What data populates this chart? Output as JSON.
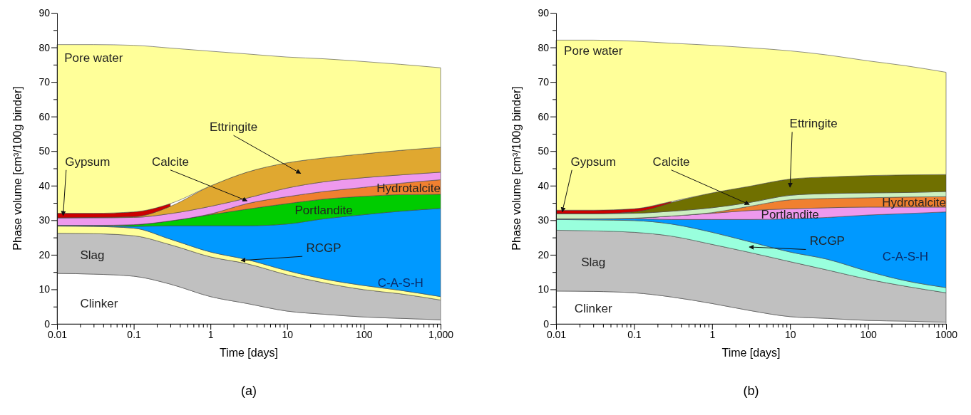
{
  "chart_data": [
    {
      "type": "area",
      "stacked": true,
      "log": "x",
      "xlabel": "Time [days]",
      "ylabel": "Phase volume [cm³/100g binder]",
      "annotations": [
        "(a)"
      ],
      "x": [
        0.01,
        0.03,
        0.1,
        0.3,
        1,
        3,
        10,
        30,
        100,
        300,
        1000
      ],
      "xlim": [
        0.01,
        1000
      ],
      "ylim": [
        0,
        90
      ],
      "xticks": [
        0.01,
        {
          "value": 0.02,
          "label": null
        },
        {
          "value": 0.03,
          "label": null
        },
        {
          "value": 0.04,
          "label": null
        },
        {
          "value": 0.05,
          "label": null
        },
        {
          "value": 0.06,
          "label": null
        },
        {
          "value": 0.07,
          "label": null
        },
        {
          "value": 0.08,
          "label": null
        },
        {
          "value": 0.09,
          "label": null
        },
        0.1,
        {
          "value": 0.2,
          "label": null
        },
        {
          "value": 0.3,
          "label": null
        },
        {
          "value": 0.4,
          "label": null
        },
        {
          "value": 0.5,
          "label": null
        },
        {
          "value": 0.6,
          "label": null
        },
        {
          "value": 0.7,
          "label": null
        },
        {
          "value": 0.8,
          "label": null
        },
        {
          "value": 0.9,
          "label": null
        },
        1,
        {
          "value": 2,
          "label": null
        },
        {
          "value": 3,
          "label": null
        },
        {
          "value": 4,
          "label": null
        },
        {
          "value": 5,
          "label": null
        },
        {
          "value": 6,
          "label": null
        },
        {
          "value": 7,
          "label": null
        },
        {
          "value": 8,
          "label": null
        },
        {
          "value": 9,
          "label": null
        },
        10,
        {
          "value": 20,
          "label": null
        },
        {
          "value": 30,
          "label": null
        },
        {
          "value": 40,
          "label": null
        },
        {
          "value": 50,
          "label": null
        },
        {
          "value": 60,
          "label": null
        },
        {
          "value": 70,
          "label": null
        },
        {
          "value": 80,
          "label": null
        },
        {
          "value": 90,
          "label": null
        },
        100,
        {
          "value": 200,
          "label": null
        },
        {
          "value": 300,
          "label": null
        },
        {
          "value": 400,
          "label": null
        },
        {
          "value": 500,
          "label": null
        },
        {
          "value": 600,
          "label": null
        },
        {
          "value": 700,
          "label": null
        },
        {
          "value": 800,
          "label": null
        },
        {
          "value": 900,
          "label": null
        },
        {
          "value": 1000,
          "label": "1,000"
        }
      ],
      "yticks": [
        0,
        {
          "value": 5,
          "label": null
        },
        10,
        {
          "value": 15,
          "label": null
        },
        20,
        {
          "value": 25,
          "label": null
        },
        30,
        {
          "value": 35,
          "label": null
        },
        40,
        {
          "value": 45,
          "label": null
        },
        50,
        {
          "value": 55,
          "label": null
        },
        60,
        {
          "value": 65,
          "label": null
        },
        70,
        {
          "value": 75,
          "label": null
        },
        80,
        {
          "value": 85,
          "label": null
        },
        90
      ],
      "series": [
        {
          "name": "Clinker",
          "color": "#ffffff",
          "values": [
            14.6,
            14.4,
            13.8,
            11.5,
            7.9,
            5.9,
            3.7,
            2.8,
            2.0,
            1.6,
            1.2
          ]
        },
        {
          "name": "Slag",
          "color": "#c0c0c0",
          "values": [
            11.6,
            11.7,
            11.7,
            11.4,
            11.5,
            11.5,
            10.5,
            9.1,
            7.9,
            7.1,
            5.7
          ]
        },
        {
          "name": "RCGP",
          "color": "#ffff99",
          "values": [
            2.1,
            2.1,
            2.2,
            1.6,
            1.4,
            1.2,
            1.2,
            1.1,
            1.2,
            1.0,
            1.0
          ]
        },
        {
          "name": "C-A-S-H",
          "color": "#0099ff",
          "values": [
            0.2,
            0.2,
            0.5,
            3.9,
            7.6,
            9.8,
            13.5,
            17.4,
            20.5,
            22.9,
            25.5
          ]
        },
        {
          "name": "Portlandite",
          "color": "#00cc00",
          "values": [
            0,
            0.1,
            0.5,
            1.4,
            3.2,
            4.8,
            5.9,
            5.7,
            5.3,
            4.8,
            4.1
          ]
        },
        {
          "name": "Hydrotalcite",
          "color": "#f08030",
          "values": [
            0,
            0,
            0,
            0,
            0.2,
            1.6,
            2.0,
            2.2,
            2.6,
            3.3,
            4.2
          ]
        },
        {
          "name": "Calcite",
          "color": "#ee99ee",
          "values": [
            2.2,
            2.2,
            2.1,
            2.1,
            2.2,
            1.6,
            2.5,
            2.8,
            2.8,
            2.4,
            2.2
          ]
        },
        {
          "name": "Ettringite",
          "color": "#e0a830",
          "values": [
            0,
            0.1,
            0.2,
            2.1,
            5.9,
            7.5,
            7.3,
            6.9,
            6.9,
            7.1,
            7.2
          ]
        },
        {
          "name": "Gypsum",
          "color": "#cc0000",
          "values": [
            1.3,
            1.2,
            1.4,
            0.8,
            null,
            null,
            null,
            null,
            null,
            null,
            null
          ]
        },
        {
          "name": "Pore water",
          "color": "#ffff99",
          "values": [
            48.8,
            48.8,
            48.2,
            45.0,
            39.0,
            34.2,
            30.6,
            28.7,
            26.7,
            24.9,
            23.0
          ]
        }
      ]
    },
    {
      "type": "area",
      "stacked": true,
      "log": "x",
      "xlabel": "Time [days]",
      "ylabel": "Phase volume [cm³/100g binder]",
      "annotations": [
        "(b)"
      ],
      "x": [
        0.01,
        0.03,
        0.1,
        0.3,
        1,
        3,
        10,
        30,
        100,
        300,
        1000
      ],
      "xlim": [
        0.01,
        1000
      ],
      "ylim": [
        0,
        90
      ],
      "xticks": [
        0.01,
        {
          "value": 0.02,
          "label": null
        },
        {
          "value": 0.03,
          "label": null
        },
        {
          "value": 0.04,
          "label": null
        },
        {
          "value": 0.05,
          "label": null
        },
        {
          "value": 0.06,
          "label": null
        },
        {
          "value": 0.07,
          "label": null
        },
        {
          "value": 0.08,
          "label": null
        },
        {
          "value": 0.09,
          "label": null
        },
        0.1,
        {
          "value": 0.2,
          "label": null
        },
        {
          "value": 0.3,
          "label": null
        },
        {
          "value": 0.4,
          "label": null
        },
        {
          "value": 0.5,
          "label": null
        },
        {
          "value": 0.6,
          "label": null
        },
        {
          "value": 0.7,
          "label": null
        },
        {
          "value": 0.8,
          "label": null
        },
        {
          "value": 0.9,
          "label": null
        },
        1,
        {
          "value": 2,
          "label": null
        },
        {
          "value": 3,
          "label": null
        },
        {
          "value": 4,
          "label": null
        },
        {
          "value": 5,
          "label": null
        },
        {
          "value": 6,
          "label": null
        },
        {
          "value": 7,
          "label": null
        },
        {
          "value": 8,
          "label": null
        },
        {
          "value": 9,
          "label": null
        },
        10,
        {
          "value": 20,
          "label": null
        },
        {
          "value": 30,
          "label": null
        },
        {
          "value": 40,
          "label": null
        },
        {
          "value": 50,
          "label": null
        },
        {
          "value": 60,
          "label": null
        },
        {
          "value": 70,
          "label": null
        },
        {
          "value": 80,
          "label": null
        },
        {
          "value": 90,
          "label": null
        },
        100,
        {
          "value": 200,
          "label": null
        },
        {
          "value": 300,
          "label": null
        },
        {
          "value": 400,
          "label": null
        },
        {
          "value": 500,
          "label": null
        },
        {
          "value": 600,
          "label": null
        },
        {
          "value": 700,
          "label": null
        },
        {
          "value": 800,
          "label": null
        },
        {
          "value": 900,
          "label": null
        },
        1000
      ],
      "yticks": [
        0,
        {
          "value": 5,
          "label": null
        },
        10,
        {
          "value": 15,
          "label": null
        },
        20,
        {
          "value": 25,
          "label": null
        },
        30,
        {
          "value": 35,
          "label": null
        },
        40,
        {
          "value": 45,
          "label": null
        },
        50,
        {
          "value": 55,
          "label": null
        },
        60,
        {
          "value": 65,
          "label": null
        },
        70,
        {
          "value": 75,
          "label": null
        },
        80,
        {
          "value": 85,
          "label": null
        },
        90
      ],
      "series": [
        {
          "name": "Clinker",
          "color": "#ffffff",
          "values": [
            9.5,
            9.4,
            9.0,
            7.8,
            5.9,
            3.9,
            2.1,
            1.6,
            1.0,
            0.8,
            0.5
          ]
        },
        {
          "name": "Slag",
          "color": "#c0c0c0",
          "values": [
            17.6,
            17.5,
            17.5,
            17.6,
            17.1,
            16.8,
            15.9,
            14.0,
            11.9,
            10.1,
            8.5
          ]
        },
        {
          "name": "RCGP",
          "color": "#99ffdd",
          "values": [
            3.1,
            3.2,
            3.4,
            3.5,
            3.5,
            3.1,
            2.8,
            3.1,
            2.3,
            1.6,
            1.5
          ]
        },
        {
          "name": "C-A-S-H",
          "color": "#0099ff",
          "values": [
            0.2,
            0.3,
            0.5,
            1.3,
            3.7,
            6.4,
            9.6,
            12.1,
            16.3,
            19.4,
            21.9
          ]
        },
        {
          "name": "Portlandite",
          "color": "#ee99ee",
          "values": [
            0,
            0,
            0.2,
            1.0,
            1.8,
            2.6,
            2.9,
            2.8,
            2.3,
            1.9,
            1.4
          ]
        },
        {
          "name": "Hydrotalcite",
          "color": "#f08030",
          "values": [
            0,
            0,
            0,
            0,
            0.2,
            1.2,
            2.6,
            2.7,
            2.7,
            2.9,
            3.0
          ]
        },
        {
          "name": "Calcite",
          "color": "#ccf0c0",
          "values": [
            1.5,
            1.5,
            1.4,
            1.4,
            1.4,
            1.1,
            1.3,
            1.4,
            1.4,
            1.3,
            1.5
          ]
        },
        {
          "name": "Ettringite",
          "color": "#707000",
          "values": [
            0,
            0,
            0.4,
            2.5,
            4.3,
            4.7,
            4.7,
            4.8,
            5.0,
            5.1,
            4.9
          ]
        },
        {
          "name": "Gypsum",
          "color": "#cc0000",
          "values": [
            1.0,
            1.0,
            0.9,
            0.3,
            null,
            null,
            null,
            null,
            null,
            null,
            null
          ]
        },
        {
          "name": "Pore water",
          "color": "#ffff99",
          "values": [
            49.2,
            49.2,
            48.5,
            45.8,
            42.7,
            40.1,
            37.1,
            35.3,
            33.2,
            31.6,
            29.6
          ]
        }
      ]
    }
  ]
}
